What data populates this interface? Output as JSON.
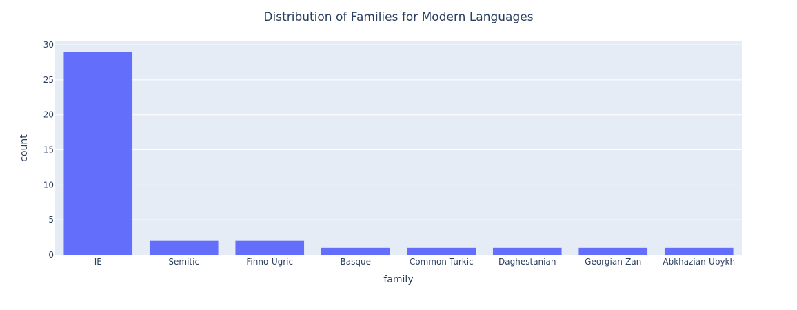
{
  "chart_data": {
    "type": "bar",
    "title": "Distribution of Families for Modern Languages",
    "xlabel": "family",
    "ylabel": "count",
    "categories": [
      "IE",
      "Semitic",
      "Finno-Ugric",
      "Basque",
      "Common Turkic",
      "Daghestanian",
      "Georgian-Zan",
      "Abkhazian-Ubykh"
    ],
    "values": [
      29,
      2,
      2,
      1,
      1,
      1,
      1,
      1
    ],
    "ylim": [
      0,
      30.5
    ],
    "yticks": [
      0,
      5,
      10,
      15,
      20,
      25,
      30
    ],
    "grid": true,
    "colors": {
      "bar": "#636efa",
      "plot_bg": "#e5ecf6",
      "grid": "#ffffff",
      "text": "#2a3f5f"
    }
  }
}
